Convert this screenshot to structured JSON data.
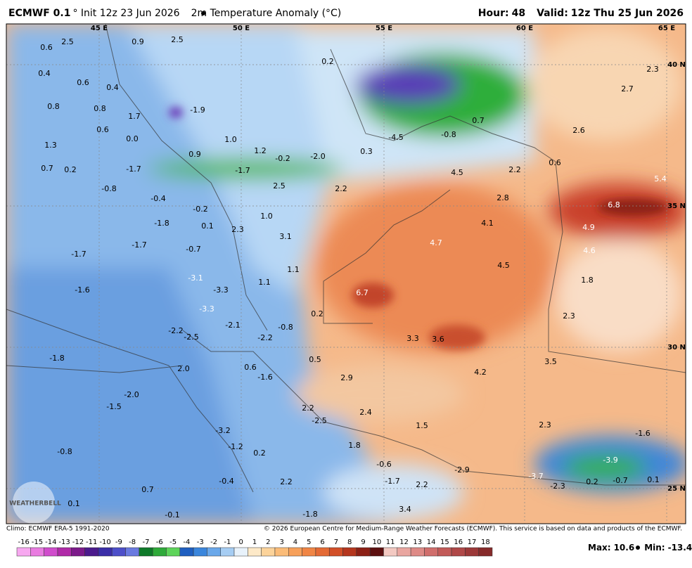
{
  "header": {
    "model": "ECMWF 0.1",
    "title": "° Init 12z 23 Jun 2026",
    "field": "2m Temperature Anomaly (°C)",
    "hour_label": "Hour:",
    "hour": "48",
    "valid_label": "Valid:",
    "valid": "12z Thu 25 Jun 2026"
  },
  "geo_labels": [
    "45 E",
    "50 E",
    "55 E",
    "60 E",
    "65 E",
    "40 N",
    "35 N",
    "30 N",
    "25 N"
  ],
  "map_labels": [
    "0.6",
    "2.5",
    "0.9",
    "2.5",
    "0.2",
    "0.4",
    "0.6",
    "0.4",
    "0.8",
    "0.8",
    "1.7",
    "-1.9",
    "0.6",
    "0.0",
    "1.3",
    "1.0",
    "0.7",
    "-4.5",
    "-0.8",
    "0.3",
    "2.6",
    "2.7",
    "2.3",
    "0.7",
    "0.2",
    "-1.7",
    "0.9",
    "1.2",
    "-0.2",
    "-2.0",
    "-1.7",
    "2.5",
    "2.2",
    "4.5",
    "2.2",
    "0.6",
    "5.4",
    "-0.8",
    "-0.4",
    "-0.2",
    "2.8",
    "6.8",
    "-1.8",
    "0.1",
    "2.3",
    "1.0",
    "4.1",
    "4.9",
    "3.1",
    "4.7",
    "4.6",
    "-1.7",
    "-0.7",
    "-1.7",
    "4.5",
    "1.1",
    "1.8",
    "-3.1",
    "-3.3",
    "1.1",
    "6.7",
    "-1.6",
    "-3.3",
    "0.2",
    "2.3",
    "-2.2",
    "-2.1",
    "-0.8",
    "-2.2",
    "-2.5",
    "3.3",
    "3.6",
    "-1.8",
    "2.0",
    "0.6",
    "0.5",
    "3.5",
    "4.2",
    "-1.6",
    "2.9",
    "-2.0",
    "-1.5",
    "2.2",
    "2.4",
    "-2.5",
    "1.5",
    "2.3",
    "-1.6",
    "-3.2",
    "-0.8",
    "-1.2",
    "0.2",
    "1.8",
    "-0.6",
    "-2.9",
    "-3.9",
    "-0.4",
    "2.2",
    "-3.7",
    "-2.3",
    "0.2",
    "-0.7",
    "0.1",
    "-1.7",
    "2.2",
    "0.7",
    "0.1",
    "-0.1",
    "3.4",
    "-1.8"
  ],
  "logo": "WEATHERBELL",
  "footer": {
    "climo": "Climo: ECMWF ERA-5 1991-2020",
    "copyright": "© 2026 European Centre for Medium-Range Weather Forecasts (ECMWF). This service is based on data and products of the ECMWF."
  },
  "colorbar": {
    "ticks": [
      -16,
      -15,
      -14,
      -13,
      -12,
      -11,
      -10,
      -9,
      -8,
      -7,
      -6,
      -5,
      -4,
      -3,
      -2,
      -1,
      0,
      1,
      2,
      3,
      4,
      5,
      6,
      7,
      8,
      9,
      10,
      11,
      12,
      13,
      14,
      15,
      16,
      17,
      18
    ],
    "colors": [
      "#f7a8f0",
      "#e97be0",
      "#d04ccc",
      "#b02aa8",
      "#7c1a8a",
      "#4b1a8c",
      "#3a2ea8",
      "#4d4fc9",
      "#6a7ae0",
      "#0f7a2a",
      "#2faa3a",
      "#5ed45a",
      "#1f5fc0",
      "#3a86dc",
      "#6aa8ea",
      "#a6cdf3",
      "#e8f2fb",
      "#fde9c8",
      "#fcd39a",
      "#fbbc78",
      "#f7a05a",
      "#f08545",
      "#e46a35",
      "#d24f28",
      "#b5361e",
      "#8c2016",
      "#5c1010",
      "#f3c9c2",
      "#e9a6a0",
      "#de8a86",
      "#d06e6c",
      "#c25a58",
      "#b04848",
      "#9c3838",
      "#862a2a"
    ]
  },
  "stats": {
    "max_label": "Max:",
    "max": "10.6",
    "min_label": "Min:",
    "min": "-13.4"
  }
}
